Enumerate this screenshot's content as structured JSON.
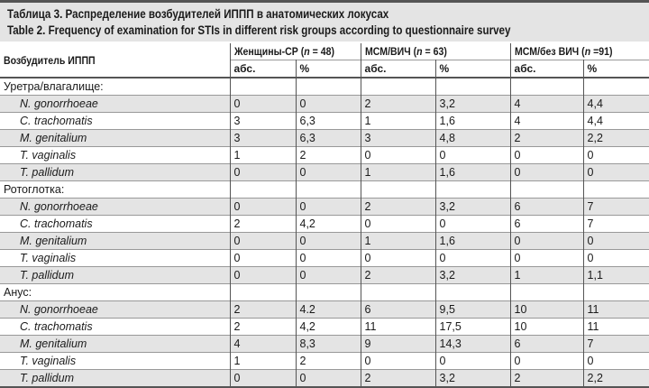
{
  "title_ru": "Таблица 3. Распределение возбудителей ИППП в анатомических локусах",
  "title_en": "Table 2. Frequency of examination for STIs in different risk groups according to questionnaire survey",
  "header": {
    "pathogen": "Возбудитель ИППП",
    "groups": [
      {
        "name": "Женщины-СР (",
        "n": "n",
        "eq": " = 48)"
      },
      {
        "name": "МСМ/ВИЧ (",
        "n": "n",
        "eq": " = 63)"
      },
      {
        "name": "МСМ/без ВИЧ  (",
        "n": "n",
        "eq": " =91)"
      }
    ],
    "abs": "абс.",
    "pct": "%"
  },
  "sections": [
    {
      "name": "Уретра/влагалище:",
      "rows": [
        {
          "label": "N. gonorrhoeae",
          "v": [
            "0",
            "0",
            "2",
            "3,2",
            "4",
            "4,4"
          ]
        },
        {
          "label": "C. trachomatis",
          "v": [
            "3",
            "6,3",
            "1",
            "1,6",
            "4",
            "4,4"
          ]
        },
        {
          "label": "M. genitalium",
          "v": [
            "3",
            "6,3",
            "3",
            "4,8",
            "2",
            "2,2"
          ]
        },
        {
          "label": "T. vaginalis",
          "v": [
            "1",
            "2",
            "0",
            "0",
            "0",
            "0"
          ]
        },
        {
          "label": "T. pallidum",
          "v": [
            "0",
            "0",
            "1",
            "1,6",
            "0",
            "0"
          ]
        }
      ]
    },
    {
      "name": "Ротоглотка:",
      "rows": [
        {
          "label": "N. gonorrhoeae",
          "v": [
            "0",
            "0",
            "2",
            "3,2",
            "6",
            "7"
          ]
        },
        {
          "label": "C. trachomatis",
          "v": [
            "2",
            "4,2",
            "0",
            "0",
            "6",
            "7"
          ]
        },
        {
          "label": "M. genitalium",
          "v": [
            "0",
            "0",
            "1",
            "1,6",
            "0",
            "0"
          ]
        },
        {
          "label": "T. vaginalis",
          "v": [
            "0",
            "0",
            "0",
            "0",
            "0",
            "0"
          ]
        },
        {
          "label": "T. pallidum",
          "v": [
            "0",
            "0",
            "2",
            "3,2",
            "1",
            "1,1"
          ]
        }
      ]
    },
    {
      "name": "Анус:",
      "rows": [
        {
          "label": "N. gonorrhoeae",
          "v": [
            "2",
            "4.2",
            "6",
            "9,5",
            "10",
            "11"
          ]
        },
        {
          "label": "C. trachomatis",
          "v": [
            "2",
            "4,2",
            "11",
            "17,5",
            "10",
            "11"
          ]
        },
        {
          "label": "M. genitalium",
          "v": [
            "4",
            "8,3",
            "9",
            "14,3",
            "6",
            "7"
          ]
        },
        {
          "label": "T. vaginalis",
          "v": [
            "1",
            "2",
            "0",
            "0",
            "0",
            "0"
          ]
        },
        {
          "label": "T. pallidum",
          "v": [
            "0",
            "0",
            "2",
            "3,2",
            "2",
            "2,2"
          ]
        }
      ]
    }
  ]
}
